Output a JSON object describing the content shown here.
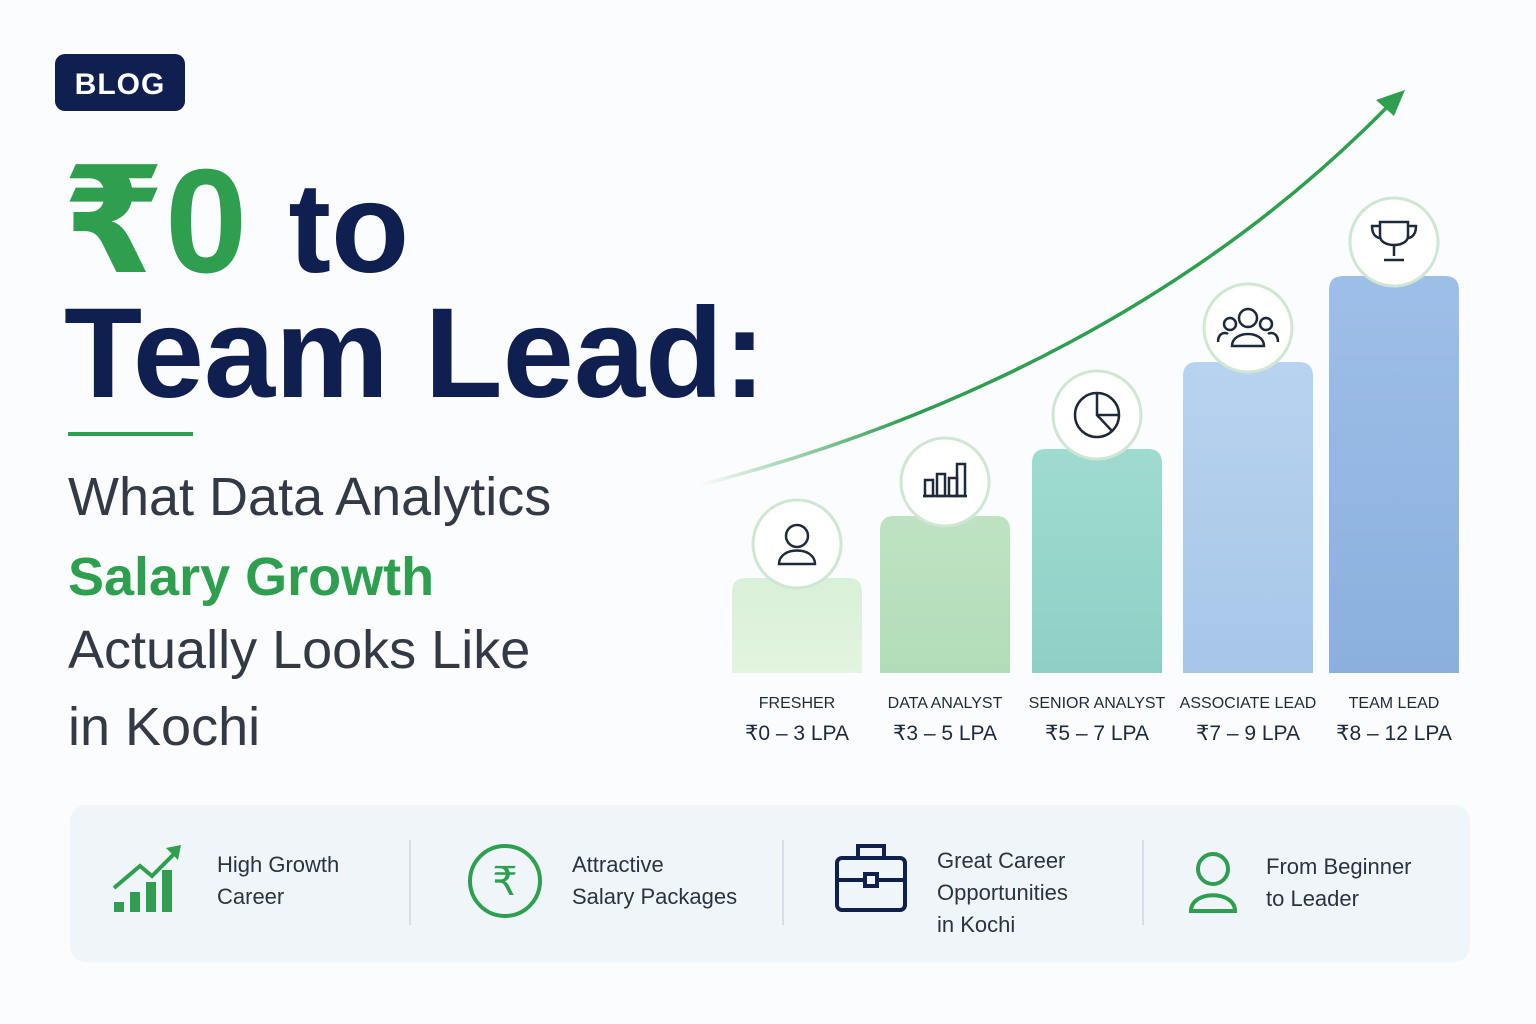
{
  "badge": "BLOG",
  "title": {
    "highlight": "₹0",
    "line1_rest": "to",
    "line2": "Team Lead:"
  },
  "subtitle": {
    "line1": "What Data Analytics",
    "highlight": "Salary Growth",
    "line3": "Actually Looks Like",
    "line4": "in Kochi"
  },
  "stages": [
    {
      "role": "FRESHER",
      "salary": "₹0 – 3 LPA"
    },
    {
      "role": "DATA ANALYST",
      "salary": "₹3 – 5 LPA"
    },
    {
      "role": "SENIOR ANALYST",
      "salary": "₹5 – 7 LPA"
    },
    {
      "role": "ASSOCIATE LEAD",
      "salary": "₹7 – 9 LPA"
    },
    {
      "role": "TEAM LEAD",
      "salary": "₹8 – 12 LPA"
    }
  ],
  "features": [
    {
      "lines": [
        "High Growth",
        "Career"
      ]
    },
    {
      "lines": [
        "Attractive",
        "Salary Packages"
      ]
    },
    {
      "lines": [
        "Great Career",
        "Opportunities",
        "in Kochi"
      ]
    },
    {
      "lines": [
        "From Beginner",
        "to Leader"
      ]
    }
  ]
}
